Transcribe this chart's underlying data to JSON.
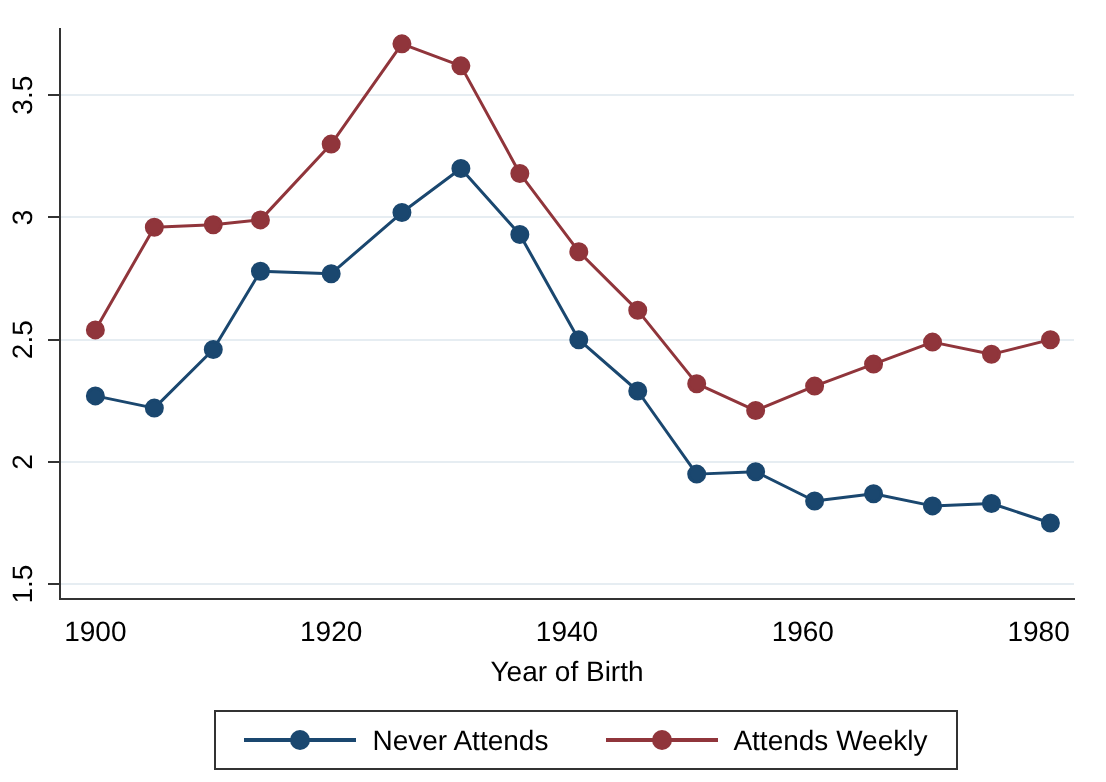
{
  "chart_data": {
    "type": "line",
    "xlabel": "Year of Birth",
    "x": [
      1900,
      1905,
      1910,
      1914,
      1920,
      1926,
      1931,
      1936,
      1941,
      1946,
      1951,
      1956,
      1961,
      1966,
      1971,
      1976,
      1981
    ],
    "series": [
      {
        "name": "Never Attends",
        "color": "#1a476f",
        "values": [
          2.27,
          2.22,
          2.46,
          2.78,
          2.77,
          3.02,
          3.2,
          2.93,
          2.5,
          2.29,
          1.95,
          1.96,
          1.84,
          1.87,
          1.82,
          1.83,
          1.75
        ]
      },
      {
        "name": "Attends Weekly",
        "color": "#90353b",
        "values": [
          2.54,
          2.96,
          2.97,
          2.99,
          3.3,
          3.71,
          3.62,
          3.18,
          2.86,
          2.62,
          2.32,
          2.21,
          2.31,
          2.4,
          2.49,
          2.44,
          2.5
        ]
      }
    ],
    "xlim": [
      1897,
      1983
    ],
    "xticks": [
      1900,
      1920,
      1940,
      1960,
      1980
    ],
    "ylim": [
      1.44,
      3.77
    ],
    "yticks": [
      1.5,
      2,
      2.5,
      3,
      3.5
    ],
    "grid": "y",
    "legend": "bottom",
    "marker": "circle",
    "line_style": "solid"
  }
}
